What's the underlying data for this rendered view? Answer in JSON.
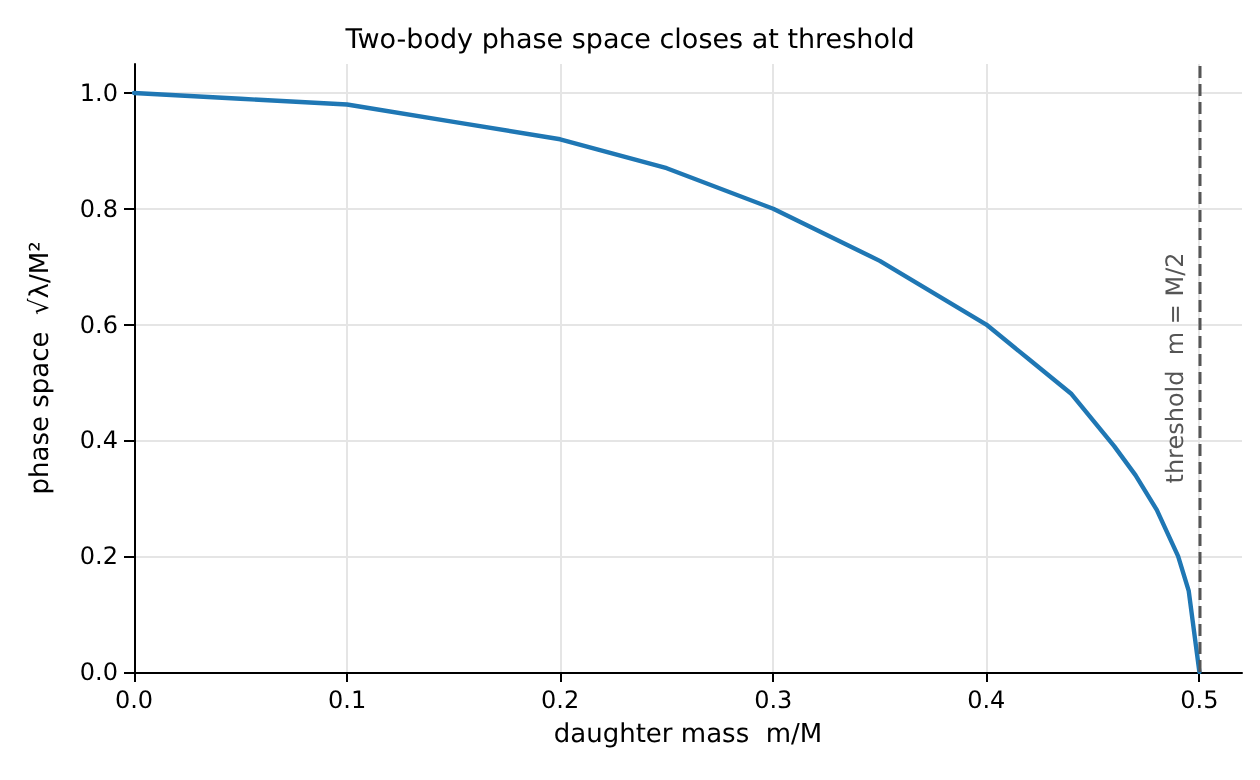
{
  "chart_data": {
    "type": "line",
    "title": "Two-body phase space closes at threshold",
    "xlabel": "daughter mass  m/M",
    "ylabel": "phase space  √λ/M²",
    "x": [
      0,
      0.05,
      0.1,
      0.15,
      0.2,
      0.25,
      0.3,
      0.35,
      0.4,
      0.42,
      0.44,
      0.46,
      0.47,
      0.48,
      0.49,
      0.495,
      0.5
    ],
    "series": [
      {
        "color": "#1f77b4",
        "values": [
          1,
          0.99,
          0.98,
          0.95,
          0.92,
          0.87,
          0.8,
          0.71,
          0.6,
          0.54,
          0.48,
          0.39,
          0.34,
          0.28,
          0.2,
          0.14,
          0
        ]
      }
    ],
    "xlim": [
      0,
      0.52
    ],
    "xticks": [
      {
        "value": 0,
        "label": "0.0"
      },
      0.1,
      0.2,
      0.3,
      0.4,
      0.5
    ],
    "ylim": [
      0,
      1.05
    ],
    "yticks": [
      {
        "value": 0,
        "label": "0.0"
      },
      0.2,
      0.4,
      0.6,
      0.8,
      {
        "value": 1,
        "label": "1.0"
      }
    ],
    "grid": true,
    "marker": "none",
    "line_style": "solid",
    "ref_lines": [
      {
        "axis": "x",
        "value": 0.5,
        "label": "threshold  m = M/2",
        "color": "#555555",
        "line_style": "dashed"
      }
    ]
  }
}
